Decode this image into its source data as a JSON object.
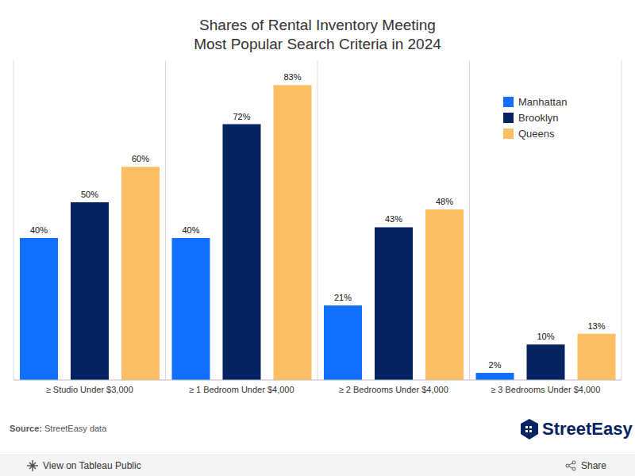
{
  "chart_data": {
    "type": "bar",
    "title": "Shares of Rental Inventory Meeting\nMost Popular Search Criteria in 2024",
    "categories": [
      "≥ Studio Under $3,000",
      "≥ 1 Bedroom Under $4,000",
      "≥ 2 Bedrooms Under $4,000",
      "≥ 3 Bedrooms Under $4,000"
    ],
    "series": [
      {
        "name": "Manhattan",
        "color": "#1170ff",
        "values": [
          40,
          40,
          21,
          2
        ],
        "value_labels": [
          "40%",
          "40%",
          "21%",
          "2%"
        ]
      },
      {
        "name": "Brooklyn",
        "color": "#052362",
        "values": [
          50,
          72,
          43,
          10
        ],
        "value_labels": [
          "50%",
          "72%",
          "43%",
          "10%"
        ]
      },
      {
        "name": "Queens",
        "color": "#fdbf63",
        "values": [
          60,
          83,
          48,
          13
        ],
        "value_labels": [
          "60%",
          "83%",
          "48%",
          "13%"
        ]
      }
    ],
    "ylim": [
      0,
      90
    ],
    "tick_labels": "x",
    "data_labels": true,
    "legend": "top-right",
    "annotations": [
      "Source: StreetEasy data",
      "StreetEasy",
      "View on Tableau Public",
      "Share"
    ]
  }
}
